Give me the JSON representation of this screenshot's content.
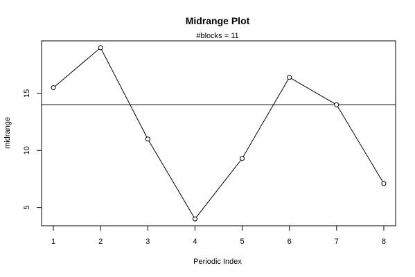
{
  "chart_data": {
    "type": "line",
    "title": "Midrange Plot",
    "subtitle": "#blocks =  11",
    "xlabel": "Periodic Index",
    "ylabel": "midrange",
    "x": [
      1,
      2,
      3,
      4,
      5,
      6,
      7,
      8
    ],
    "values": [
      15.5,
      19.0,
      11.0,
      4.0,
      9.3,
      16.4,
      14.0,
      7.1
    ],
    "xlim": [
      0.75,
      8.25
    ],
    "ylim": [
      3.4,
      19.6
    ],
    "xticks": [
      1,
      2,
      3,
      4,
      5,
      6,
      7,
      8
    ],
    "yticks": [
      5,
      10,
      15
    ],
    "reference_line": 14.0,
    "grid": false,
    "markers": "open-circle",
    "line_color": "#000000"
  }
}
